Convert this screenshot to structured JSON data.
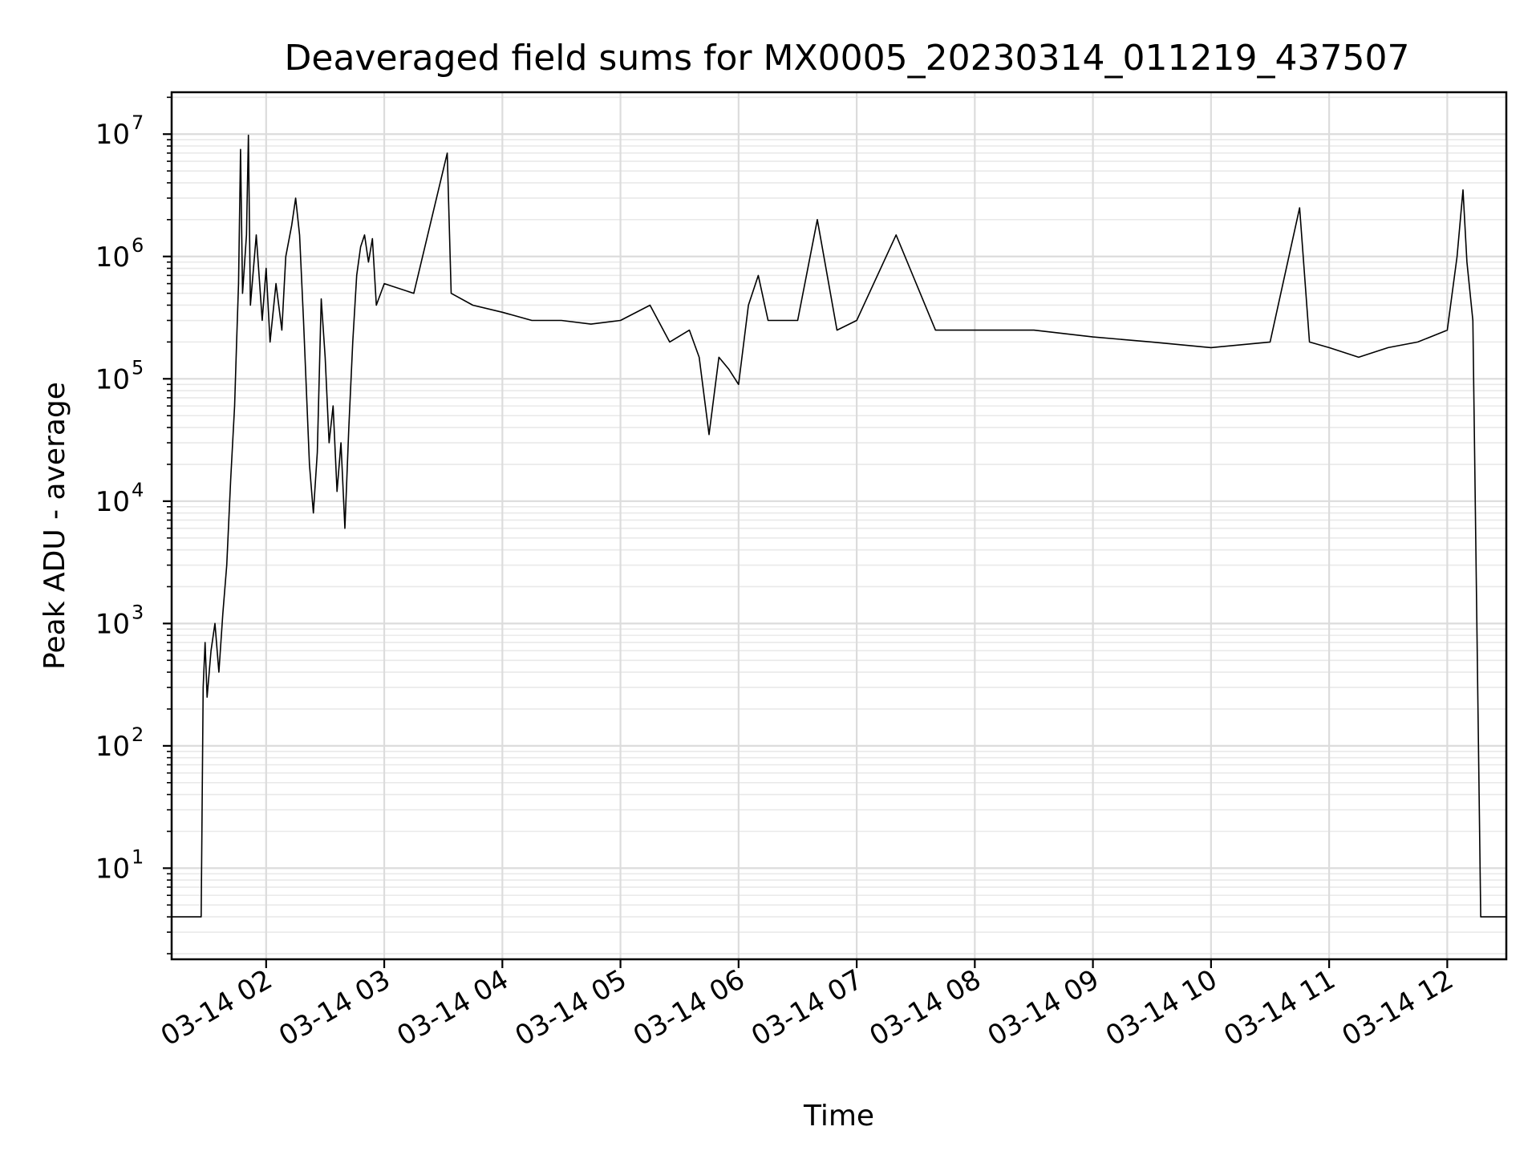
{
  "chart_data": {
    "type": "line",
    "title": "Deaveraged field sums for MX0005_20230314_011219_437507",
    "xlabel": "Time",
    "ylabel": "Peak ADU - average",
    "y_scale": "log",
    "ylim": [
      1.8,
      22000000
    ],
    "xlim": [
      "03-14 01:12",
      "03-14 12:30"
    ],
    "grid": true,
    "x_tick_labels": [
      "03-14 02",
      "03-14 03",
      "03-14 04",
      "03-14 05",
      "03-14 06",
      "03-14 07",
      "03-14 08",
      "03-14 09",
      "03-14 10",
      "03-14 11",
      "03-14 12"
    ],
    "y_tick_labels": [
      {
        "base": "10",
        "exp": "1"
      },
      {
        "base": "10",
        "exp": "2"
      },
      {
        "base": "10",
        "exp": "3"
      },
      {
        "base": "10",
        "exp": "4"
      },
      {
        "base": "10",
        "exp": "5"
      },
      {
        "base": "10",
        "exp": "6"
      },
      {
        "base": "10",
        "exp": "7"
      }
    ],
    "line_color": "#000000",
    "series": [
      {
        "points": [
          [
            "03-14 01:12",
            4
          ],
          [
            "03-14 01:27",
            4
          ],
          [
            "03-14 01:28",
            300
          ],
          [
            "03-14 01:29",
            700
          ],
          [
            "03-14 01:30",
            250
          ],
          [
            "03-14 01:32",
            600
          ],
          [
            "03-14 01:34",
            1000
          ],
          [
            "03-14 01:36",
            400
          ],
          [
            "03-14 01:38",
            1200
          ],
          [
            "03-14 01:40",
            3000
          ],
          [
            "03-14 01:42",
            15000
          ],
          [
            "03-14 01:44",
            60000
          ],
          [
            "03-14 01:45",
            200000
          ],
          [
            "03-14 01:46",
            600000
          ],
          [
            "03-14 01:47",
            7500000
          ],
          [
            "03-14 01:48",
            500000
          ],
          [
            "03-14 01:50",
            1500000
          ],
          [
            "03-14 01:51",
            9800000
          ],
          [
            "03-14 01:52",
            400000
          ],
          [
            "03-14 01:55",
            1500000
          ],
          [
            "03-14 01:58",
            300000
          ],
          [
            "03-14 02:00",
            800000
          ],
          [
            "03-14 02:02",
            200000
          ],
          [
            "03-14 02:05",
            600000
          ],
          [
            "03-14 02:08",
            250000
          ],
          [
            "03-14 02:10",
            1000000
          ],
          [
            "03-14 02:13",
            1800000
          ],
          [
            "03-14 02:15",
            3000000
          ],
          [
            "03-14 02:17",
            1500000
          ],
          [
            "03-14 02:19",
            300000
          ],
          [
            "03-14 02:21",
            50000
          ],
          [
            "03-14 02:22",
            20000
          ],
          [
            "03-14 02:24",
            8000
          ],
          [
            "03-14 02:26",
            25000
          ],
          [
            "03-14 02:28",
            450000
          ],
          [
            "03-14 02:30",
            150000
          ],
          [
            "03-14 02:32",
            30000
          ],
          [
            "03-14 02:34",
            60000
          ],
          [
            "03-14 02:36",
            12000
          ],
          [
            "03-14 02:38",
            30000
          ],
          [
            "03-14 02:40",
            6000
          ],
          [
            "03-14 02:42",
            40000
          ],
          [
            "03-14 02:44",
            200000
          ],
          [
            "03-14 02:46",
            700000
          ],
          [
            "03-14 02:48",
            1200000
          ],
          [
            "03-14 02:50",
            1500000
          ],
          [
            "03-14 02:52",
            900000
          ],
          [
            "03-14 02:54",
            1400000
          ],
          [
            "03-14 02:56",
            400000
          ],
          [
            "03-14 03:00",
            600000
          ],
          [
            "03-14 03:15",
            500000
          ],
          [
            "03-14 03:32",
            7000000
          ],
          [
            "03-14 03:34",
            500000
          ],
          [
            "03-14 03:45",
            400000
          ],
          [
            "03-14 04:00",
            350000
          ],
          [
            "03-14 04:15",
            300000
          ],
          [
            "03-14 04:30",
            300000
          ],
          [
            "03-14 04:45",
            280000
          ],
          [
            "03-14 05:00",
            300000
          ],
          [
            "03-14 05:15",
            400000
          ],
          [
            "03-14 05:25",
            200000
          ],
          [
            "03-14 05:35",
            250000
          ],
          [
            "03-14 05:40",
            150000
          ],
          [
            "03-14 05:45",
            35000
          ],
          [
            "03-14 05:50",
            150000
          ],
          [
            "03-14 05:55",
            120000
          ],
          [
            "03-14 06:00",
            90000
          ],
          [
            "03-14 06:05",
            400000
          ],
          [
            "03-14 06:10",
            700000
          ],
          [
            "03-14 06:15",
            300000
          ],
          [
            "03-14 06:30",
            300000
          ],
          [
            "03-14 06:40",
            2000000
          ],
          [
            "03-14 06:50",
            250000
          ],
          [
            "03-14 07:00",
            300000
          ],
          [
            "03-14 07:20",
            1500000
          ],
          [
            "03-14 07:40",
            250000
          ],
          [
            "03-14 08:00",
            250000
          ],
          [
            "03-14 08:30",
            250000
          ],
          [
            "03-14 09:00",
            220000
          ],
          [
            "03-14 09:30",
            200000
          ],
          [
            "03-14 10:00",
            180000
          ],
          [
            "03-14 10:30",
            200000
          ],
          [
            "03-14 10:45",
            2500000
          ],
          [
            "03-14 10:50",
            200000
          ],
          [
            "03-14 11:00",
            180000
          ],
          [
            "03-14 11:15",
            150000
          ],
          [
            "03-14 11:30",
            180000
          ],
          [
            "03-14 11:45",
            200000
          ],
          [
            "03-14 12:00",
            250000
          ],
          [
            "03-14 12:05",
            1000000
          ],
          [
            "03-14 12:08",
            3500000
          ],
          [
            "03-14 12:10",
            900000
          ],
          [
            "03-14 12:13",
            300000
          ],
          [
            "03-14 12:17",
            4
          ],
          [
            "03-14 12:30",
            4
          ]
        ]
      }
    ]
  }
}
